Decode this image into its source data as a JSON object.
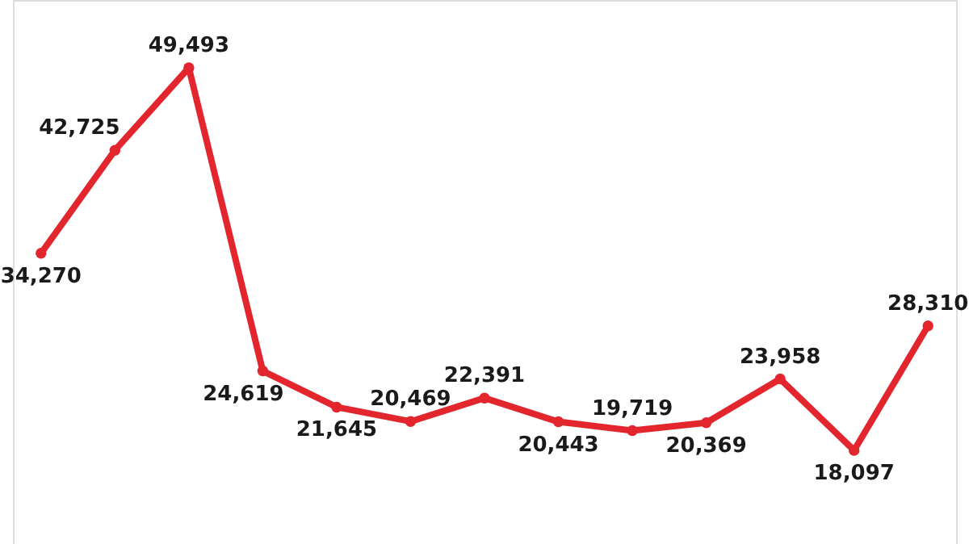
{
  "chart_data": {
    "type": "line",
    "categories": [
      null,
      null,
      null,
      null,
      null,
      null,
      null,
      null,
      null,
      null,
      null,
      null,
      null
    ],
    "series": [
      {
        "color": "#e3262e",
        "values": [
          34270,
          42725,
          49493,
          24619,
          21645,
          20469,
          22391,
          20443,
          19719,
          20369,
          23958,
          18097,
          28310
        ],
        "value_labels": [
          "34,270",
          "42,725",
          "49,493",
          "24,619",
          "21,645",
          "20,469",
          "22,391",
          "20,443",
          "19,719",
          "20,369",
          "23,958",
          "18,097",
          "28,310"
        ]
      }
    ],
    "marker": "circle",
    "line_style": "solid"
  }
}
